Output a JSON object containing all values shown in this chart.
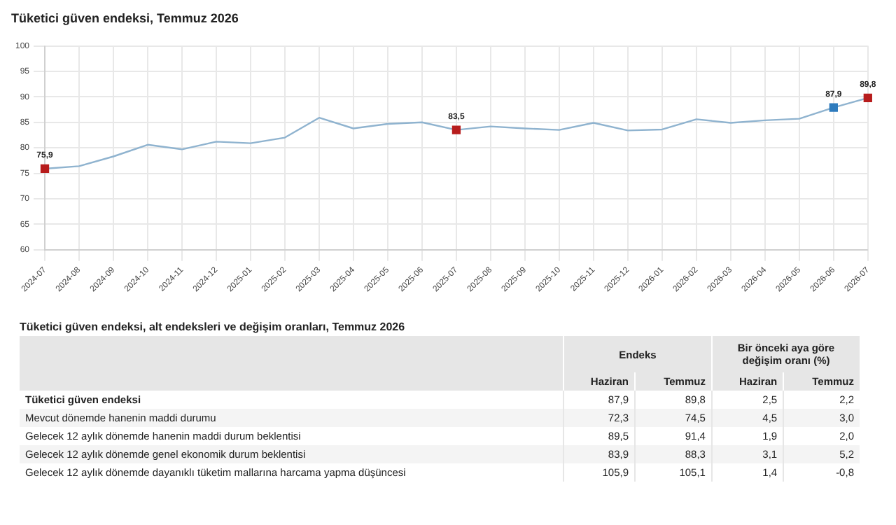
{
  "chart_data": [
    {
      "type": "line",
      "title": "Tüketici güven endeksi, Temmuz 2026",
      "categories": [
        "2024-07",
        "2024-08",
        "2024-09",
        "2024-10",
        "2024-11",
        "2024-12",
        "2025-01",
        "2025-02",
        "2025-03",
        "2025-04",
        "2025-05",
        "2025-06",
        "2025-07",
        "2025-08",
        "2025-09",
        "2025-10",
        "2025-11",
        "2025-12",
        "2026-01",
        "2026-02",
        "2026-03",
        "2026-04",
        "2026-05",
        "2026-06",
        "2026-07"
      ],
      "series": [
        {
          "color": "#8fb3cf",
          "values": [
            75.9,
            76.4,
            78.3,
            80.6,
            79.7,
            81.2,
            80.9,
            82.0,
            85.9,
            83.8,
            84.7,
            85.0,
            83.5,
            84.2,
            83.8,
            83.5,
            84.9,
            83.4,
            83.6,
            85.6,
            84.9,
            85.4,
            85.7,
            87.9,
            89.8
          ],
          "colors": [
            "#b71c1c",
            null,
            null,
            null,
            null,
            null,
            null,
            null,
            null,
            null,
            null,
            null,
            "#b71c1c",
            null,
            null,
            null,
            null,
            null,
            null,
            null,
            null,
            null,
            null,
            "#2e7bbd",
            "#b71c1c"
          ],
          "value_labels": [
            "75,9",
            null,
            null,
            null,
            null,
            null,
            null,
            null,
            null,
            null,
            null,
            null,
            "83,5",
            null,
            null,
            null,
            null,
            null,
            null,
            null,
            null,
            null,
            null,
            "87,9",
            "89,8"
          ]
        }
      ],
      "ylim": [
        60,
        100
      ],
      "yticks": [
        60,
        65,
        70,
        75,
        80,
        85,
        90,
        95,
        100
      ],
      "grid": true,
      "legend": false
    },
    {
      "type": "other",
      "title": "Tüketici güven endeksi, alt endeksleri ve değişim oranları, Temmuz 2026",
      "annotations": [
        "Endeks",
        "Bir önceki aya göre değişim oranı (%)"
      ],
      "categories": [
        "Haziran",
        "Temmuz",
        "Haziran",
        "Temmuz"
      ],
      "y_categories": [
        "Tüketici güven endeksi",
        "Mevcut dönemde hanenin maddi durumu",
        "Gelecek 12 aylık dönemde hanenin maddi durum beklentisi",
        "Gelecek 12 aylık dönemde genel ekonomik durum beklentisi",
        "Gelecek 12 aylık dönemde dayanıklı tüketim mallarına harcama yapma düşüncesi"
      ],
      "cell_labels": [
        [
          "87,9",
          "89,8",
          "2,5",
          "2,2"
        ],
        [
          "72,3",
          "74,5",
          "4,5",
          "3,0"
        ],
        [
          "89,5",
          "91,4",
          "1,9",
          "2,0"
        ],
        [
          "83,9",
          "88,3",
          "3,1",
          "5,2"
        ],
        [
          "105,9",
          "105,1",
          "1,4",
          "-0,8"
        ]
      ]
    }
  ]
}
